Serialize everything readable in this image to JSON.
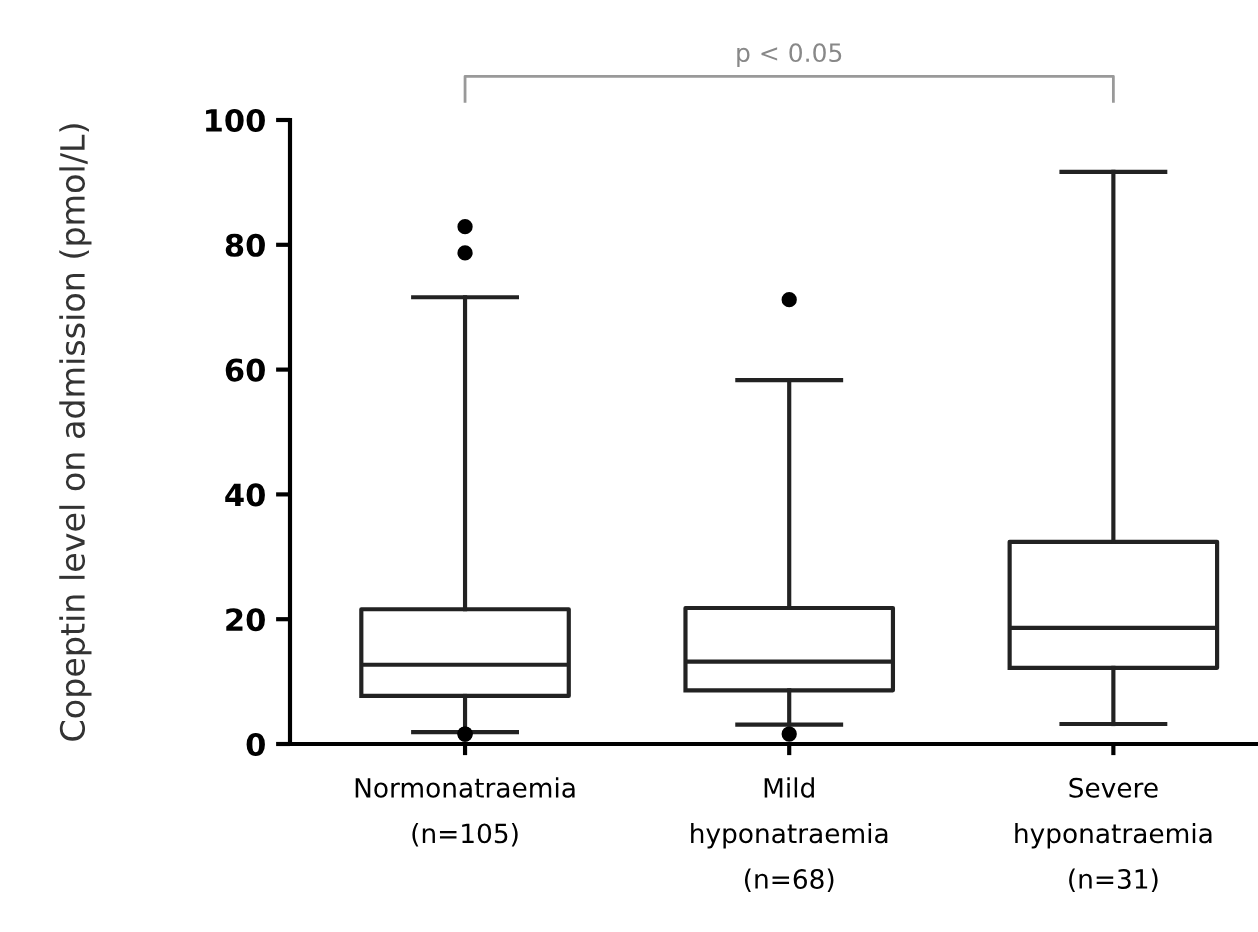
{
  "chart_data": {
    "type": "box",
    "ylabel": "Copeptin level on admission (pmol/L)",
    "categories": [
      "Normonatraemia\n(n=105)",
      "Mild\nhyponatraemia\n(n=68)",
      "Severe\nhyponatraemia\n(n=31)"
    ],
    "boxes": [
      {
        "low": 1.9,
        "q1": 7.7,
        "median": 12.7,
        "q3": 21.6,
        "high": 71.6,
        "outliers": [
          82.9,
          78.7,
          1.6,
          1.6
        ]
      },
      {
        "low": 3.1,
        "q1": 8.6,
        "median": 13.2,
        "q3": 21.8,
        "high": 58.3,
        "outliers": [
          71.2,
          1.6
        ]
      },
      {
        "low": 3.2,
        "q1": 12.2,
        "median": 18.6,
        "q3": 32.4,
        "high": 91.7
      }
    ],
    "ylim": [
      0,
      100
    ],
    "yticks": [
      0,
      20,
      40,
      60,
      80,
      100
    ],
    "grid": false,
    "annotations": [
      "p < 0.05"
    ]
  }
}
